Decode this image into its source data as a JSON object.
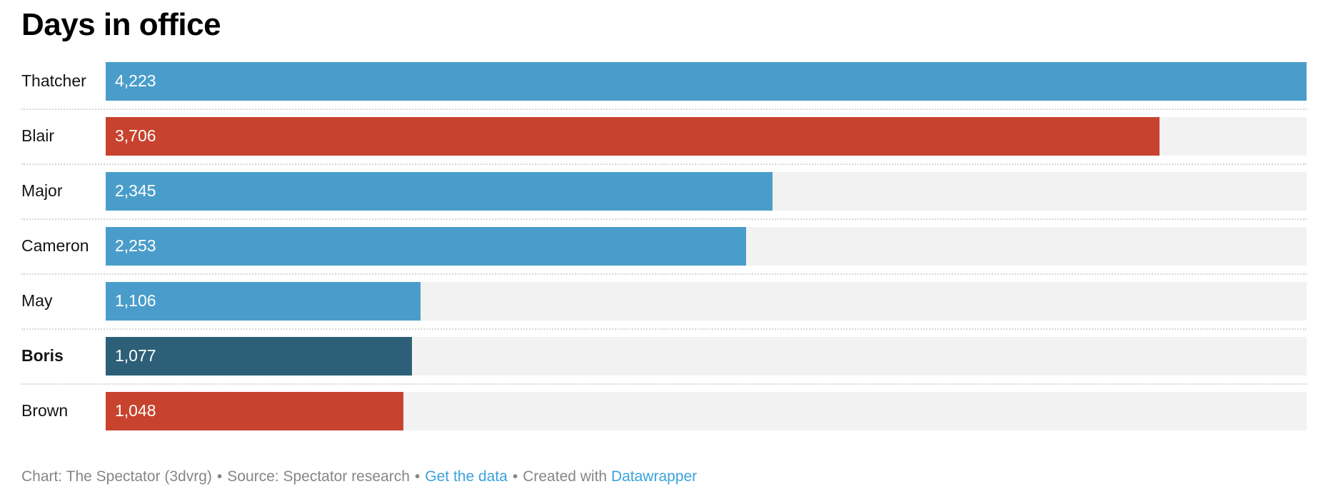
{
  "title": "Days in office",
  "chart_data": {
    "type": "bar",
    "orientation": "horizontal",
    "title": "Days in office",
    "categories": [
      "Thatcher",
      "Blair",
      "Major",
      "Cameron",
      "May",
      "Boris",
      "Brown"
    ],
    "values": [
      4223,
      3706,
      2345,
      2253,
      1106,
      1077,
      1048
    ],
    "value_labels": [
      "4,223",
      "3,706",
      "2,345",
      "2,253",
      "1,106",
      "1,077",
      "1,048"
    ],
    "bar_colors": [
      "#4a9dca",
      "#c7432e",
      "#4a9dca",
      "#4a9dca",
      "#4a9dca",
      "#2d5f78",
      "#c7432e"
    ],
    "bold_categories": [
      "Boris"
    ],
    "xlim": [
      0,
      4223
    ],
    "grid": false,
    "legend": "none",
    "track_color": "#f2f2f2",
    "value_label_position": "inside-start",
    "value_label_color": "#ffffff"
  },
  "footer": {
    "chart_credit": "Chart: The Spectator (3dvrg)",
    "source": "Source: Spectator research",
    "get_data_link": "Get the data",
    "created_with": "Created with",
    "datawrapper_link": "Datawrapper",
    "separator": "•",
    "link_color": "#3aa2dc",
    "text_color": "#868686"
  }
}
